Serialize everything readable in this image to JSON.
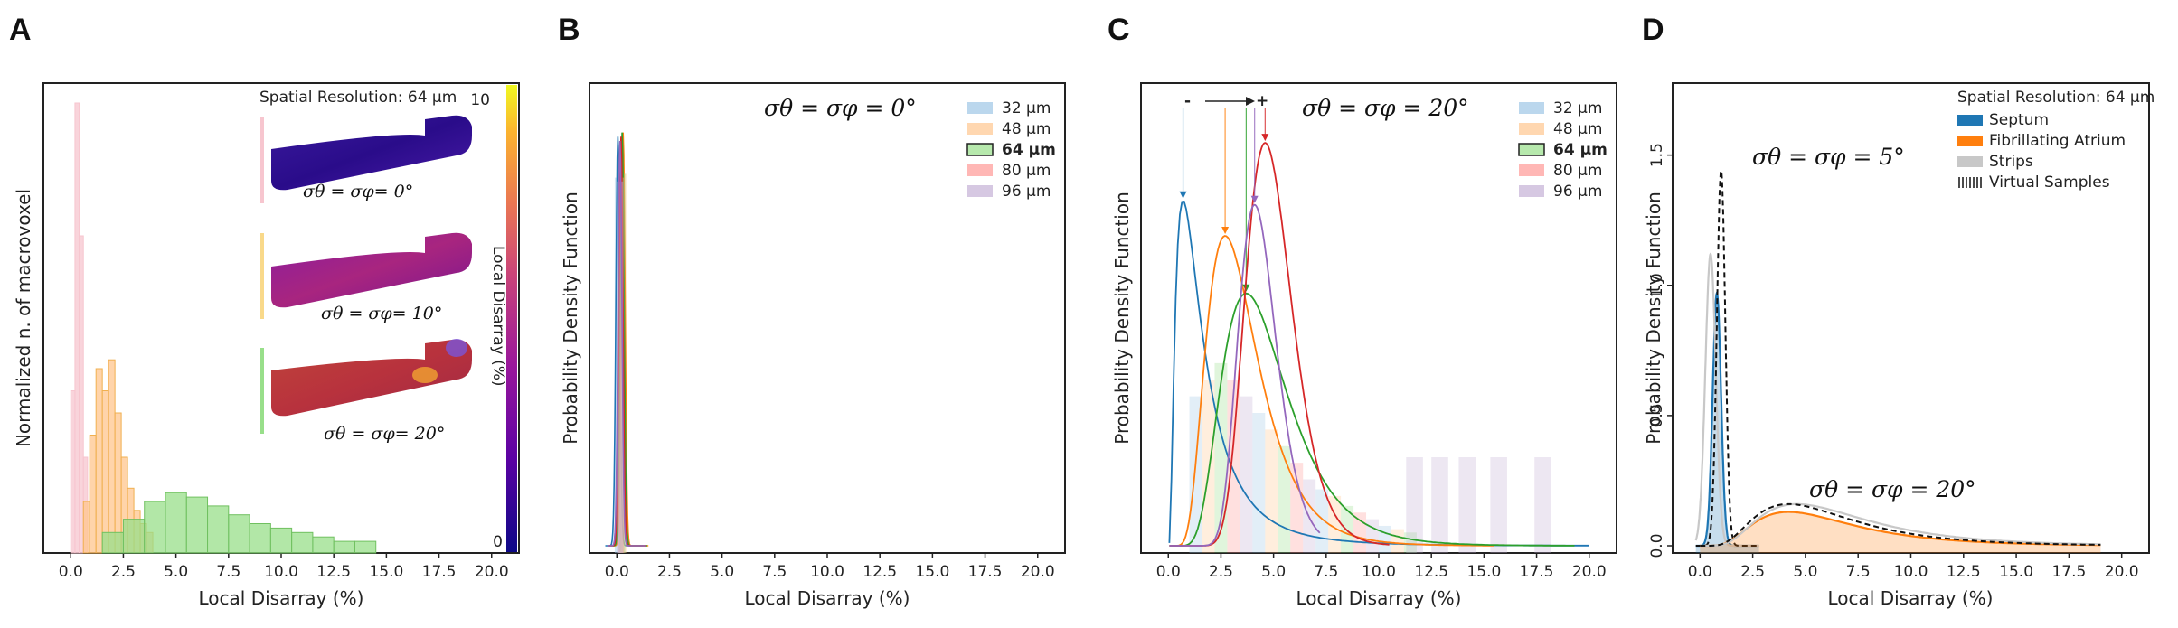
{
  "colors": {
    "um32": "#1f77b4",
    "um48": "#ff7f0e",
    "um64": "#2ca02c",
    "um80": "#d62728",
    "um96": "#9467bd",
    "septum": "#1f77b4",
    "atrium": "#ff7f0e",
    "strips": "#c8c8c8",
    "virtual": "#111111",
    "fill32": "#9ec6e6",
    "fill48": "#ffc68e",
    "fill64": "#98df8a",
    "fill80": "#ff9896",
    "fill96": "#c5b0d5",
    "pink": "#f7c6cf",
    "cmap": [
      "#0d0887",
      "#5b02a3",
      "#9a179b",
      "#cb4678",
      "#eb7852",
      "#fbb32f",
      "#f0f921"
    ]
  },
  "chart_data": [
    {
      "panel": "A",
      "type": "histogram",
      "xlabel": "Local Disarray (%)",
      "ylabel": "Normalized n. of macrovoxel",
      "xlim": [
        -1.3,
        21.3
      ],
      "xticks": [
        "0.0",
        "2.5",
        "5.0",
        "7.5",
        "10.0",
        "12.5",
        "15.0",
        "17.5",
        "20.0"
      ],
      "inset_title": "Spatial Resolution: 64 μm",
      "inset_labels": [
        "σθ = σφ= 0°",
        "σθ = σφ= 10°",
        "σθ = σφ= 20°"
      ],
      "colorbar": {
        "label": "Local Disarray (%)",
        "min": "0",
        "max": "10"
      },
      "series": [
        {
          "name": "0°",
          "x": [
            0.0,
            0.2,
            0.4,
            0.6
          ],
          "values": [
            0.35,
            1.0,
            0.7,
            0.2
          ]
        },
        {
          "name": "10°",
          "x": [
            0.6,
            0.9,
            1.2,
            1.5,
            1.8,
            2.1,
            2.4,
            2.7,
            3.0,
            3.3,
            3.6
          ],
          "values": [
            0.1,
            0.25,
            0.4,
            0.35,
            0.42,
            0.3,
            0.2,
            0.13,
            0.08,
            0.05,
            0.03
          ]
        },
        {
          "name": "20°",
          "x": [
            1.5,
            2.5,
            3.5,
            4.5,
            5.5,
            6.5,
            7.5,
            8.5,
            9.5,
            10.5,
            11.5,
            12.5,
            13.5
          ],
          "values": [
            0.03,
            0.06,
            0.1,
            0.12,
            0.11,
            0.09,
            0.07,
            0.05,
            0.04,
            0.03,
            0.02,
            0.01,
            0.01
          ]
        }
      ]
    },
    {
      "panel": "B",
      "type": "line",
      "xlabel": "Local Disarray (%)",
      "ylabel": "Probability Density Function",
      "xlim": [
        -1.3,
        21.3
      ],
      "xticks": [
        "0.0",
        "2.5",
        "5.0",
        "7.5",
        "10.0",
        "12.5",
        "15.0",
        "17.5",
        "20.0"
      ],
      "title": "σθ = σφ = 0°",
      "legend": [
        "32 μm",
        "48 μm",
        "64 μm",
        "80 μm",
        "96 μm"
      ],
      "series": [
        {
          "name": "32 μm",
          "peak_x": 0.05,
          "peak_y": 0.97
        },
        {
          "name": "48 μm",
          "peak_x": 0.3,
          "peak_y": 0.98
        },
        {
          "name": "64 μm",
          "peak_x": 0.25,
          "peak_y": 0.98
        },
        {
          "name": "80 μm",
          "peak_x": 0.2,
          "peak_y": 0.97
        },
        {
          "name": "96 μm",
          "peak_x": 0.15,
          "peak_y": 0.96
        }
      ]
    },
    {
      "panel": "C",
      "type": "line",
      "xlabel": "Local Disarray (%)",
      "ylabel": "Probability Density Function",
      "xlim": [
        -1.3,
        21.3
      ],
      "xticks": [
        "0.0",
        "2.5",
        "5.0",
        "7.5",
        "10.0",
        "12.5",
        "15.0",
        "17.5",
        "20.0"
      ],
      "title": "σθ = σφ = 20°",
      "legend": [
        "32 μm",
        "48 μm",
        "64 μm",
        "80 μm",
        "96 μm"
      ],
      "arrow_labels": [
        "-",
        "+"
      ],
      "series": [
        {
          "name": "32 μm",
          "mode": 0.7,
          "peak": 0.78,
          "spread": 0.85,
          "end": 20.0
        },
        {
          "name": "48 μm",
          "mode": 2.7,
          "peak": 0.7,
          "spread": 0.45,
          "end": 15.5
        },
        {
          "name": "64 μm",
          "mode": 3.7,
          "peak": 0.57,
          "spread": 0.42,
          "end": 19.3
        },
        {
          "name": "80 μm",
          "mode": 4.6,
          "peak": 0.91,
          "spread": 0.24,
          "end": 10.5
        },
        {
          "name": "96 μm",
          "mode": 4.1,
          "peak": 0.77,
          "spread": 0.22,
          "end": 7.2
        }
      ]
    },
    {
      "panel": "D",
      "type": "line",
      "xlabel": "Local Disarray (%)",
      "ylabel": "Probability Density Function",
      "xlim": [
        -1.3,
        21.3
      ],
      "ylim": [
        0,
        1.7
      ],
      "xticks": [
        "0.0",
        "2.5",
        "5.0",
        "7.5",
        "10.0",
        "12.5",
        "15.0",
        "17.5",
        "20.0"
      ],
      "yticks": [
        "0.0",
        "0.5",
        "1.0",
        "1.5"
      ],
      "legend_title": "Spatial Resolution: 64 μm",
      "legend": [
        "Septum",
        "Fibrillating Atrium",
        "Strips",
        "Virtual Samples"
      ],
      "annotations": [
        "σθ = σφ = 5°",
        "σθ = σφ = 20°"
      ],
      "series": [
        {
          "name": "Septum 5°",
          "mode": 0.8,
          "peak": 0.97
        },
        {
          "name": "Strips 5°",
          "mode": 0.5,
          "peak": 1.12
        },
        {
          "name": "Virtual 5°",
          "mode": 1.0,
          "peak": 1.44
        },
        {
          "name": "Atrium 20°",
          "mode": 4.2,
          "peak": 0.13
        },
        {
          "name": "Strips 20°",
          "mode": 4.6,
          "peak": 0.16
        },
        {
          "name": "Virtual 20°",
          "mode": 4.2,
          "peak": 0.16
        }
      ]
    }
  ]
}
